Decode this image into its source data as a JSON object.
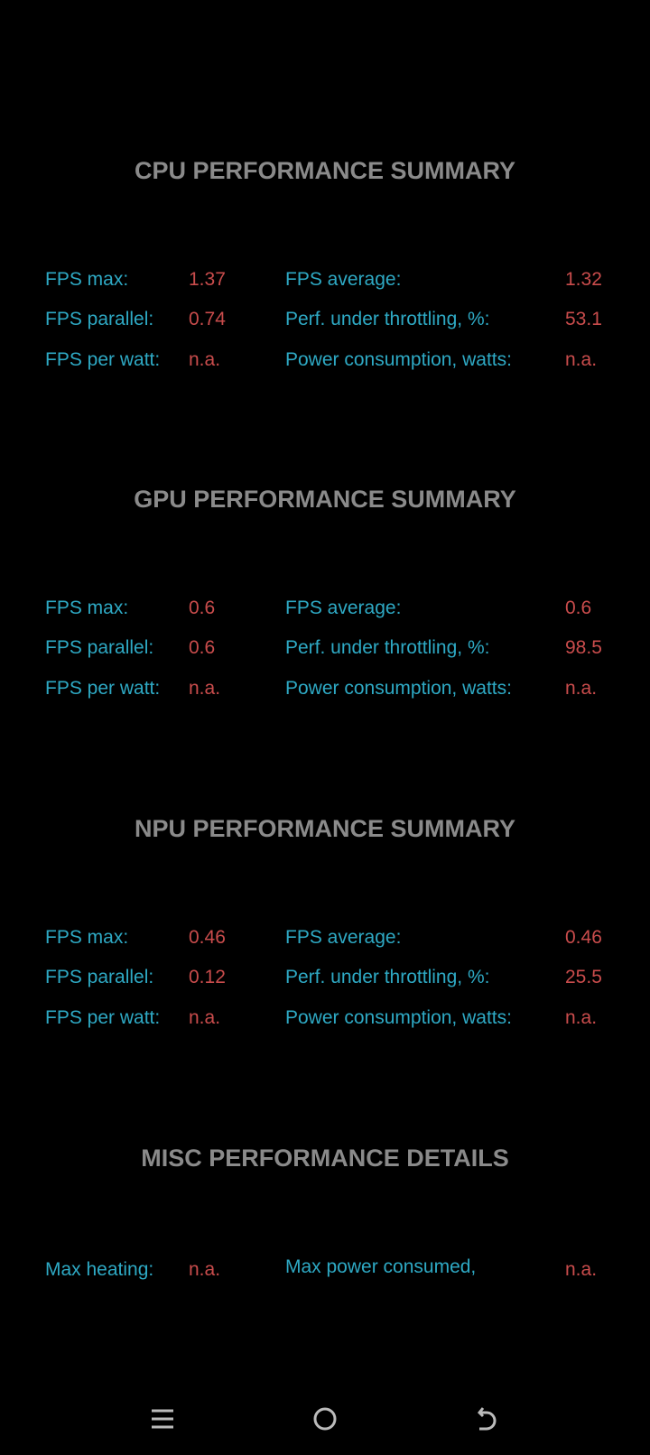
{
  "colors": {
    "label": "#2ea9c4",
    "value": "#c94c4c",
    "title": "#8a8a8a",
    "background": "#000000"
  },
  "sections": [
    {
      "title": "CPU PERFORMANCE SUMMARY",
      "rows": [
        {
          "l1": "FPS max:",
          "v1": "1.37",
          "l2": "FPS average:",
          "v2": "1.32"
        },
        {
          "l1": "FPS parallel:",
          "v1": "0.74",
          "l2": "Perf. under throttling, %:",
          "v2": "53.1"
        },
        {
          "l1": "FPS per watt:",
          "v1": "n.a.",
          "l2": "Power consumption, watts:",
          "v2": "n.a."
        }
      ]
    },
    {
      "title": "GPU PERFORMANCE SUMMARY",
      "rows": [
        {
          "l1": "FPS max:",
          "v1": "0.6",
          "l2": "FPS average:",
          "v2": "0.6"
        },
        {
          "l1": "FPS parallel:",
          "v1": "0.6",
          "l2": "Perf. under throttling, %:",
          "v2": "98.5"
        },
        {
          "l1": "FPS per watt:",
          "v1": "n.a.",
          "l2": "Power consumption, watts:",
          "v2": "n.a."
        }
      ]
    },
    {
      "title": "NPU PERFORMANCE SUMMARY",
      "rows": [
        {
          "l1": "FPS max:",
          "v1": "0.46",
          "l2": "FPS average:",
          "v2": "0.46"
        },
        {
          "l1": "FPS parallel:",
          "v1": "0.12",
          "l2": "Perf. under throttling, %:",
          "v2": "25.5"
        },
        {
          "l1": "FPS per watt:",
          "v1": "n.a.",
          "l2": "Power consumption, watts:",
          "v2": "n.a."
        }
      ]
    }
  ],
  "misc": {
    "title": "MISC PERFORMANCE DETAILS",
    "l1": "Max heating:",
    "v1": "n.a.",
    "l2": "Max power consumed, watts:",
    "v2": "n.a."
  },
  "navbar": {
    "icons": [
      "menu-icon",
      "home-icon",
      "back-icon"
    ]
  }
}
